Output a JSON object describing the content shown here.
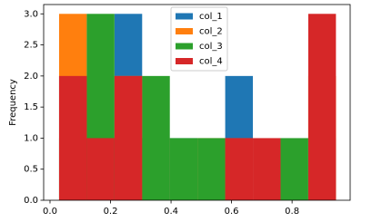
{
  "chart_data": {
    "type": "histogram",
    "ylabel": "Frequency",
    "bins": [
      0.03,
      0.1215,
      0.213,
      0.3045,
      0.396,
      0.4875,
      0.579,
      0.6705,
      0.762,
      0.8535,
      0.945
    ],
    "series": [
      {
        "name": "col_1",
        "color": "#1f77b4",
        "values": [
          2,
          1,
          3,
          0,
          1,
          0,
          2,
          0,
          0,
          1
        ]
      },
      {
        "name": "col_2",
        "color": "#ff7f0e",
        "values": [
          3,
          0,
          2,
          1,
          0,
          1,
          1,
          0,
          0,
          2
        ]
      },
      {
        "name": "col_3",
        "color": "#2ca02c",
        "values": [
          1,
          3,
          1,
          2,
          1,
          1,
          0,
          0,
          1,
          0
        ]
      },
      {
        "name": "col_4",
        "color": "#d62728",
        "values": [
          2,
          1,
          2,
          0,
          0,
          0,
          1,
          1,
          0,
          3
        ]
      }
    ],
    "xlim": [
      -0.021,
      0.992
    ],
    "ylim": [
      0,
      3.15
    ],
    "xticks": [
      {
        "value": 0,
        "label": "0.0"
      },
      0.2,
      0.4,
      0.6,
      0.8
    ],
    "yticks": [
      {
        "value": 0,
        "label": "0.0"
      },
      0.5,
      {
        "value": 1,
        "label": "1.0"
      },
      1.5,
      {
        "value": 2,
        "label": "2.0"
      },
      2.5,
      {
        "value": 3,
        "label": "3.0"
      }
    ],
    "legend": "upper center"
  }
}
